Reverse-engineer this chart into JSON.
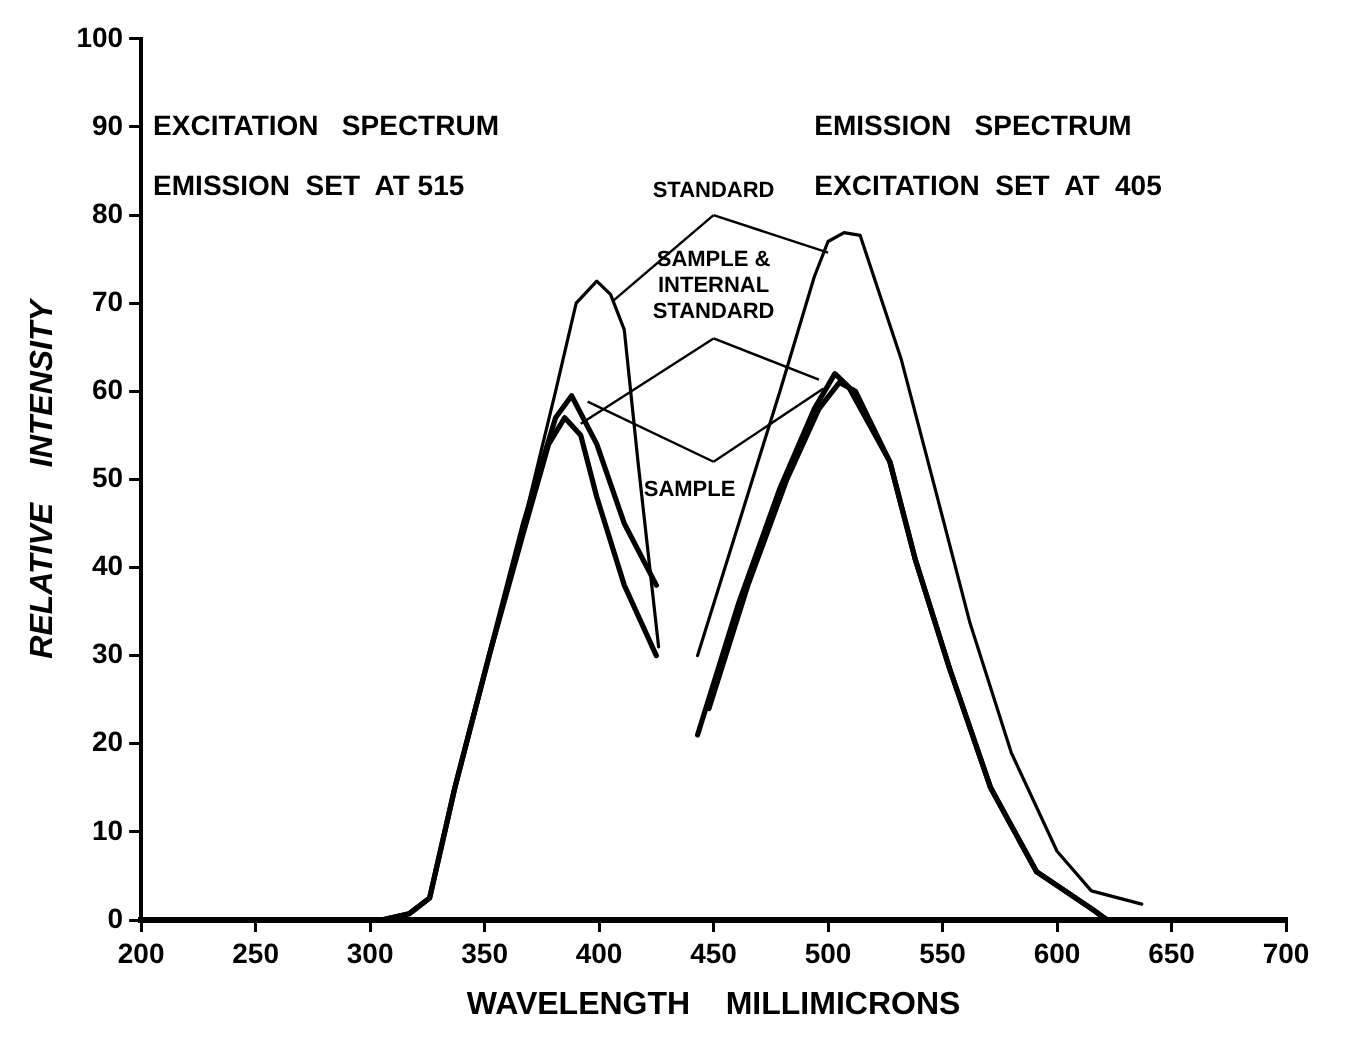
{
  "chart_data": {
    "type": "line",
    "xlabel": "WAVELENGTH    MILLIMICRONS",
    "ylabel": "RELATIVE    INTENSITY",
    "xlim": [
      200,
      700
    ],
    "ylim": [
      0,
      100
    ],
    "xticks": [
      200,
      250,
      300,
      350,
      400,
      450,
      500,
      550,
      600,
      650,
      700
    ],
    "yticks": [
      0,
      10,
      20,
      30,
      40,
      50,
      60,
      70,
      80,
      90,
      100
    ],
    "grid": false,
    "legend": false,
    "marker": "none",
    "line_style": "solid",
    "annotations": [
      "EXCITATION   SPECTRUM",
      "EMISSION   SPECTRUM",
      "EMISSION  SET  AT 515",
      "EXCITATION  SET  AT  405"
    ],
    "series": [
      {
        "name": "STANDARD",
        "color": "#000000",
        "x": [
          305,
          317,
          326,
          337,
          352,
          367,
          381,
          390,
          399,
          405,
          411,
          417,
          426
        ],
        "values": [
          0,
          0.7,
          2.5,
          15,
          30,
          45,
          60,
          70,
          72.5,
          71,
          67,
          52,
          31
        ]
      },
      {
        "color": "#000000",
        "x": [
          443,
          461,
          479,
          494,
          500,
          507,
          514,
          532,
          547,
          562,
          580,
          600,
          615,
          637
        ],
        "values": [
          30,
          45,
          60,
          73,
          77,
          78,
          77.7,
          63.6,
          48.7,
          33.7,
          19,
          7.8,
          3.3,
          1.8
        ]
      },
      {
        "name": "SAMPLE & INTERNAL STANDARD",
        "color": "#000000",
        "x": [
          305,
          317,
          326,
          337,
          352,
          367,
          378,
          385,
          392,
          399,
          411,
          425
        ],
        "values": [
          0,
          0.7,
          2.5,
          15,
          30,
          44,
          54,
          57,
          55,
          48,
          38,
          30
        ]
      },
      {
        "color": "#000000",
        "x": [
          443,
          461,
          479,
          494,
          503,
          509,
          527,
          538,
          553,
          571,
          591,
          615,
          622
        ],
        "values": [
          21,
          36,
          49,
          58,
          62,
          60.5,
          52,
          41,
          28.6,
          15,
          5.5,
          1.3,
          0
        ]
      },
      {
        "name": "SAMPLE",
        "color": "#000000",
        "x": [
          305,
          317,
          326,
          337,
          352,
          367,
          381,
          388,
          399,
          411,
          425
        ],
        "values": [
          0,
          0.7,
          2.5,
          15,
          30,
          45,
          57,
          59.5,
          54,
          45,
          38
        ]
      },
      {
        "color": "#000000",
        "x": [
          448,
          465,
          482,
          496,
          505,
          512,
          527,
          538,
          553,
          571,
          591,
          615,
          622
        ],
        "values": [
          24,
          38,
          50,
          58,
          61,
          60,
          52,
          41,
          28.6,
          15,
          5.5,
          1.3,
          0
        ]
      }
    ]
  }
}
